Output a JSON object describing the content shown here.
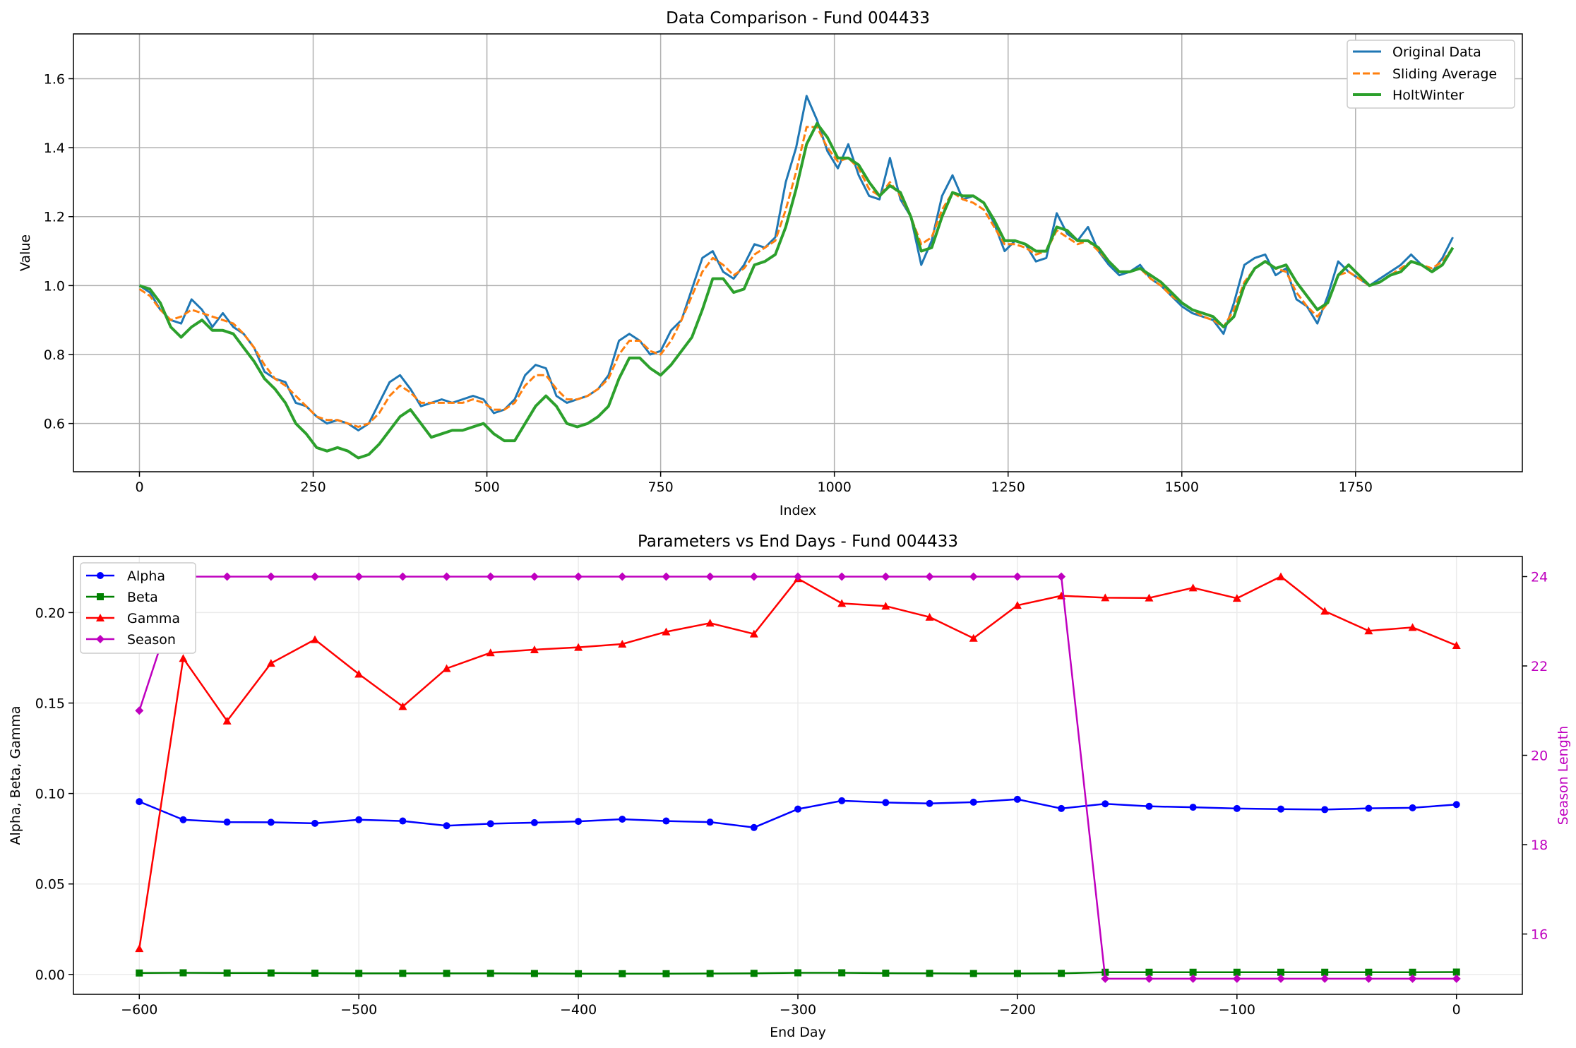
{
  "chart_data": [
    {
      "type": "line",
      "title": "Data Comparison - Fund 004433",
      "xlabel": "Index",
      "ylabel": "Value",
      "xlim": [
        -95,
        1990
      ],
      "ylim": [
        0.46,
        1.73
      ],
      "xticks": [
        0,
        250,
        500,
        750,
        1000,
        1250,
        1500,
        1750
      ],
      "yticks": [
        0.6,
        0.8,
        1.0,
        1.2,
        1.4,
        1.6
      ],
      "grid": true,
      "legend_position": "top-right",
      "series": [
        {
          "name": "Original Data",
          "color": "#1f77b4",
          "style": "solid",
          "x": [
            0,
            15,
            30,
            45,
            60,
            75,
            90,
            105,
            120,
            135,
            150,
            165,
            180,
            195,
            210,
            225,
            240,
            255,
            270,
            285,
            300,
            315,
            330,
            345,
            360,
            375,
            390,
            405,
            420,
            435,
            450,
            465,
            480,
            495,
            510,
            525,
            540,
            555,
            570,
            585,
            600,
            615,
            630,
            645,
            660,
            675,
            690,
            705,
            720,
            735,
            750,
            765,
            780,
            795,
            810,
            825,
            840,
            855,
            870,
            885,
            900,
            915,
            930,
            945,
            960,
            975,
            990,
            1005,
            1020,
            1035,
            1050,
            1065,
            1080,
            1095,
            1110,
            1125,
            1140,
            1155,
            1170,
            1185,
            1200,
            1215,
            1230,
            1245,
            1260,
            1275,
            1290,
            1305,
            1320,
            1335,
            1350,
            1365,
            1380,
            1395,
            1410,
            1425,
            1440,
            1455,
            1470,
            1485,
            1500,
            1515,
            1530,
            1545,
            1560,
            1575,
            1590,
            1605,
            1620,
            1635,
            1650,
            1665,
            1680,
            1695,
            1710,
            1725,
            1740,
            1755,
            1770,
            1785,
            1800,
            1815,
            1830,
            1845,
            1860,
            1875,
            1890
          ],
          "values": [
            1.0,
            0.98,
            0.93,
            0.9,
            0.89,
            0.96,
            0.93,
            0.88,
            0.92,
            0.88,
            0.86,
            0.82,
            0.75,
            0.73,
            0.72,
            0.66,
            0.65,
            0.62,
            0.6,
            0.61,
            0.6,
            0.58,
            0.6,
            0.66,
            0.72,
            0.74,
            0.7,
            0.65,
            0.66,
            0.67,
            0.66,
            0.67,
            0.68,
            0.67,
            0.63,
            0.64,
            0.67,
            0.74,
            0.77,
            0.76,
            0.68,
            0.66,
            0.67,
            0.68,
            0.7,
            0.74,
            0.84,
            0.86,
            0.84,
            0.8,
            0.81,
            0.87,
            0.9,
            0.99,
            1.08,
            1.1,
            1.04,
            1.02,
            1.06,
            1.12,
            1.11,
            1.14,
            1.3,
            1.4,
            1.55,
            1.48,
            1.39,
            1.34,
            1.41,
            1.32,
            1.26,
            1.25,
            1.37,
            1.25,
            1.2,
            1.06,
            1.13,
            1.26,
            1.32,
            1.25,
            1.26,
            1.24,
            1.18,
            1.1,
            1.13,
            1.12,
            1.07,
            1.08,
            1.21,
            1.15,
            1.13,
            1.17,
            1.1,
            1.06,
            1.03,
            1.04,
            1.06,
            1.02,
            1.0,
            0.97,
            0.94,
            0.92,
            0.91,
            0.9,
            0.86,
            0.95,
            1.06,
            1.08,
            1.09,
            1.03,
            1.05,
            0.96,
            0.94,
            0.89,
            0.97,
            1.07,
            1.04,
            1.02,
            1.0,
            1.02,
            1.04,
            1.06,
            1.09,
            1.06,
            1.04,
            1.08,
            1.14
          ]
        },
        {
          "name": "Sliding Average",
          "color": "#ff7f0e",
          "style": "dashed",
          "x": [
            0,
            15,
            30,
            45,
            60,
            75,
            90,
            105,
            120,
            135,
            150,
            165,
            180,
            195,
            210,
            225,
            240,
            255,
            270,
            285,
            300,
            315,
            330,
            345,
            360,
            375,
            390,
            405,
            420,
            435,
            450,
            465,
            480,
            495,
            510,
            525,
            540,
            555,
            570,
            585,
            600,
            615,
            630,
            645,
            660,
            675,
            690,
            705,
            720,
            735,
            750,
            765,
            780,
            795,
            810,
            825,
            840,
            855,
            870,
            885,
            900,
            915,
            930,
            945,
            960,
            975,
            990,
            1005,
            1020,
            1035,
            1050,
            1065,
            1080,
            1095,
            1110,
            1125,
            1140,
            1155,
            1170,
            1185,
            1200,
            1215,
            1230,
            1245,
            1260,
            1275,
            1290,
            1305,
            1320,
            1335,
            1350,
            1365,
            1380,
            1395,
            1410,
            1425,
            1440,
            1455,
            1470,
            1485,
            1500,
            1515,
            1530,
            1545,
            1560,
            1575,
            1590,
            1605,
            1620,
            1635,
            1650,
            1665,
            1680,
            1695,
            1710,
            1725,
            1740,
            1755,
            1770,
            1785,
            1800,
            1815,
            1830,
            1845,
            1860,
            1875,
            1890
          ],
          "values": [
            0.99,
            0.97,
            0.93,
            0.9,
            0.91,
            0.93,
            0.92,
            0.91,
            0.9,
            0.89,
            0.86,
            0.82,
            0.77,
            0.73,
            0.71,
            0.68,
            0.65,
            0.62,
            0.61,
            0.61,
            0.6,
            0.59,
            0.6,
            0.63,
            0.68,
            0.71,
            0.69,
            0.66,
            0.66,
            0.66,
            0.66,
            0.66,
            0.67,
            0.66,
            0.64,
            0.64,
            0.66,
            0.71,
            0.74,
            0.74,
            0.7,
            0.67,
            0.67,
            0.68,
            0.7,
            0.73,
            0.8,
            0.84,
            0.84,
            0.81,
            0.8,
            0.84,
            0.9,
            0.97,
            1.04,
            1.08,
            1.06,
            1.03,
            1.05,
            1.09,
            1.11,
            1.13,
            1.22,
            1.33,
            1.46,
            1.46,
            1.4,
            1.36,
            1.37,
            1.34,
            1.28,
            1.26,
            1.3,
            1.26,
            1.2,
            1.12,
            1.14,
            1.22,
            1.27,
            1.25,
            1.24,
            1.22,
            1.17,
            1.12,
            1.12,
            1.11,
            1.09,
            1.1,
            1.16,
            1.14,
            1.12,
            1.13,
            1.1,
            1.07,
            1.04,
            1.04,
            1.05,
            1.02,
            1.0,
            0.97,
            0.95,
            0.93,
            0.91,
            0.9,
            0.88,
            0.93,
            1.01,
            1.05,
            1.07,
            1.05,
            1.04,
            0.98,
            0.94,
            0.91,
            0.95,
            1.03,
            1.04,
            1.02,
            1.0,
            1.01,
            1.03,
            1.05,
            1.07,
            1.06,
            1.05,
            1.07,
            1.11
          ]
        },
        {
          "name": "HoltWinter",
          "color": "#2ca02c",
          "style": "solid",
          "x": [
            0,
            15,
            30,
            45,
            60,
            75,
            90,
            105,
            120,
            135,
            150,
            165,
            180,
            195,
            210,
            225,
            240,
            255,
            270,
            285,
            300,
            315,
            330,
            345,
            360,
            375,
            390,
            405,
            420,
            435,
            450,
            465,
            480,
            495,
            510,
            525,
            540,
            555,
            570,
            585,
            600,
            615,
            630,
            645,
            660,
            675,
            690,
            705,
            720,
            735,
            750,
            765,
            780,
            795,
            810,
            825,
            840,
            855,
            870,
            885,
            900,
            915,
            930,
            945,
            960,
            975,
            990,
            1005,
            1020,
            1035,
            1050,
            1065,
            1080,
            1095,
            1110,
            1125,
            1140,
            1155,
            1170,
            1185,
            1200,
            1215,
            1230,
            1245,
            1260,
            1275,
            1290,
            1305,
            1320,
            1335,
            1350,
            1365,
            1380,
            1395,
            1410,
            1425,
            1440,
            1455,
            1470,
            1485,
            1500,
            1515,
            1530,
            1545,
            1560,
            1575,
            1590,
            1605,
            1620,
            1635,
            1650,
            1665,
            1680,
            1695,
            1710,
            1725,
            1740,
            1755,
            1770,
            1785,
            1800,
            1815,
            1830,
            1845,
            1860,
            1875,
            1890
          ],
          "values": [
            1.0,
            0.99,
            0.95,
            0.88,
            0.85,
            0.88,
            0.9,
            0.87,
            0.87,
            0.86,
            0.82,
            0.78,
            0.73,
            0.7,
            0.66,
            0.6,
            0.57,
            0.53,
            0.52,
            0.53,
            0.52,
            0.5,
            0.51,
            0.54,
            0.58,
            0.62,
            0.64,
            0.6,
            0.56,
            0.57,
            0.58,
            0.58,
            0.59,
            0.6,
            0.57,
            0.55,
            0.55,
            0.6,
            0.65,
            0.68,
            0.65,
            0.6,
            0.59,
            0.6,
            0.62,
            0.65,
            0.73,
            0.79,
            0.79,
            0.76,
            0.74,
            0.77,
            0.81,
            0.85,
            0.93,
            1.02,
            1.02,
            0.98,
            0.99,
            1.06,
            1.07,
            1.09,
            1.17,
            1.28,
            1.41,
            1.47,
            1.43,
            1.37,
            1.37,
            1.35,
            1.3,
            1.26,
            1.29,
            1.27,
            1.2,
            1.1,
            1.11,
            1.2,
            1.27,
            1.26,
            1.26,
            1.24,
            1.19,
            1.13,
            1.13,
            1.12,
            1.1,
            1.1,
            1.17,
            1.16,
            1.13,
            1.13,
            1.11,
            1.07,
            1.04,
            1.04,
            1.05,
            1.03,
            1.01,
            0.98,
            0.95,
            0.93,
            0.92,
            0.91,
            0.88,
            0.91,
            1.0,
            1.05,
            1.07,
            1.05,
            1.06,
            1.01,
            0.97,
            0.93,
            0.95,
            1.03,
            1.06,
            1.03,
            1.0,
            1.01,
            1.03,
            1.04,
            1.07,
            1.06,
            1.04,
            1.06,
            1.11
          ]
        }
      ]
    },
    {
      "type": "line",
      "title": "Parameters vs End Days - Fund 004433",
      "xlabel": "End Day",
      "ylabel": "Alpha, Beta, Gamma",
      "y2label": "Season Length",
      "xlim": [
        -630,
        30
      ],
      "ylim": [
        -0.011,
        0.231
      ],
      "y2lim": [
        14.65,
        24.45
      ],
      "xticks": [
        -600,
        -500,
        -400,
        -300,
        -200,
        -100,
        0
      ],
      "yticks": [
        0.0,
        0.05,
        0.1,
        0.15,
        0.2
      ],
      "y2ticks": [
        16,
        18,
        20,
        22,
        24
      ],
      "grid": true,
      "legend_position": "top-left",
      "x": [
        -600,
        -580,
        -560,
        -540,
        -520,
        -500,
        -480,
        -460,
        -440,
        -420,
        -400,
        -380,
        -360,
        -340,
        -320,
        -300,
        -280,
        -260,
        -240,
        -220,
        -200,
        -180,
        -160,
        -140,
        -120,
        -100,
        -80,
        -60,
        -40,
        -20,
        0
      ],
      "series": [
        {
          "name": "Alpha",
          "color": "#0000ff",
          "marker": "circle",
          "axis": "left",
          "values": [
            0.0955,
            0.0855,
            0.0842,
            0.0841,
            0.0835,
            0.0855,
            0.0848,
            0.0822,
            0.0833,
            0.0839,
            0.0846,
            0.0858,
            0.0848,
            0.0842,
            0.0812,
            0.0914,
            0.096,
            0.095,
            0.0945,
            0.0952,
            0.0968,
            0.0917,
            0.0943,
            0.0929,
            0.0924,
            0.0917,
            0.0914,
            0.0911,
            0.0918,
            0.0921,
            0.0939
          ]
        },
        {
          "name": "Beta",
          "color": "#008000",
          "marker": "square",
          "axis": "left",
          "values": [
            0.0008,
            0.0009,
            0.0008,
            0.0008,
            0.0007,
            0.0006,
            0.0006,
            0.0006,
            0.0006,
            0.0005,
            0.0004,
            0.0004,
            0.0004,
            0.0005,
            0.0006,
            0.0009,
            0.0009,
            0.0007,
            0.0006,
            0.0005,
            0.0005,
            0.0006,
            0.0012,
            0.0012,
            0.0012,
            0.0012,
            0.0012,
            0.0012,
            0.0012,
            0.0012,
            0.0013
          ]
        },
        {
          "name": "Gamma",
          "color": "#ff0000",
          "marker": "triangle",
          "axis": "left",
          "values": [
            0.0143,
            0.1747,
            0.1401,
            0.172,
            0.1851,
            0.166,
            0.1481,
            0.1691,
            0.1778,
            0.1795,
            0.1808,
            0.1826,
            0.1894,
            0.1942,
            0.1882,
            0.2188,
            0.2051,
            0.2036,
            0.1975,
            0.1858,
            0.204,
            0.2093,
            0.2082,
            0.2081,
            0.2137,
            0.2079,
            0.2199,
            0.2008,
            0.1899,
            0.1918,
            0.1818
          ]
        },
        {
          "name": "Season",
          "color": "#bf00bf",
          "marker": "diamond",
          "axis": "right",
          "values": [
            21,
            24,
            24,
            24,
            24,
            24,
            24,
            24,
            24,
            24,
            24,
            24,
            24,
            24,
            24,
            24,
            24,
            24,
            24,
            24,
            24,
            24,
            15,
            15,
            15,
            15,
            15,
            15,
            15,
            15,
            15
          ]
        }
      ]
    }
  ]
}
